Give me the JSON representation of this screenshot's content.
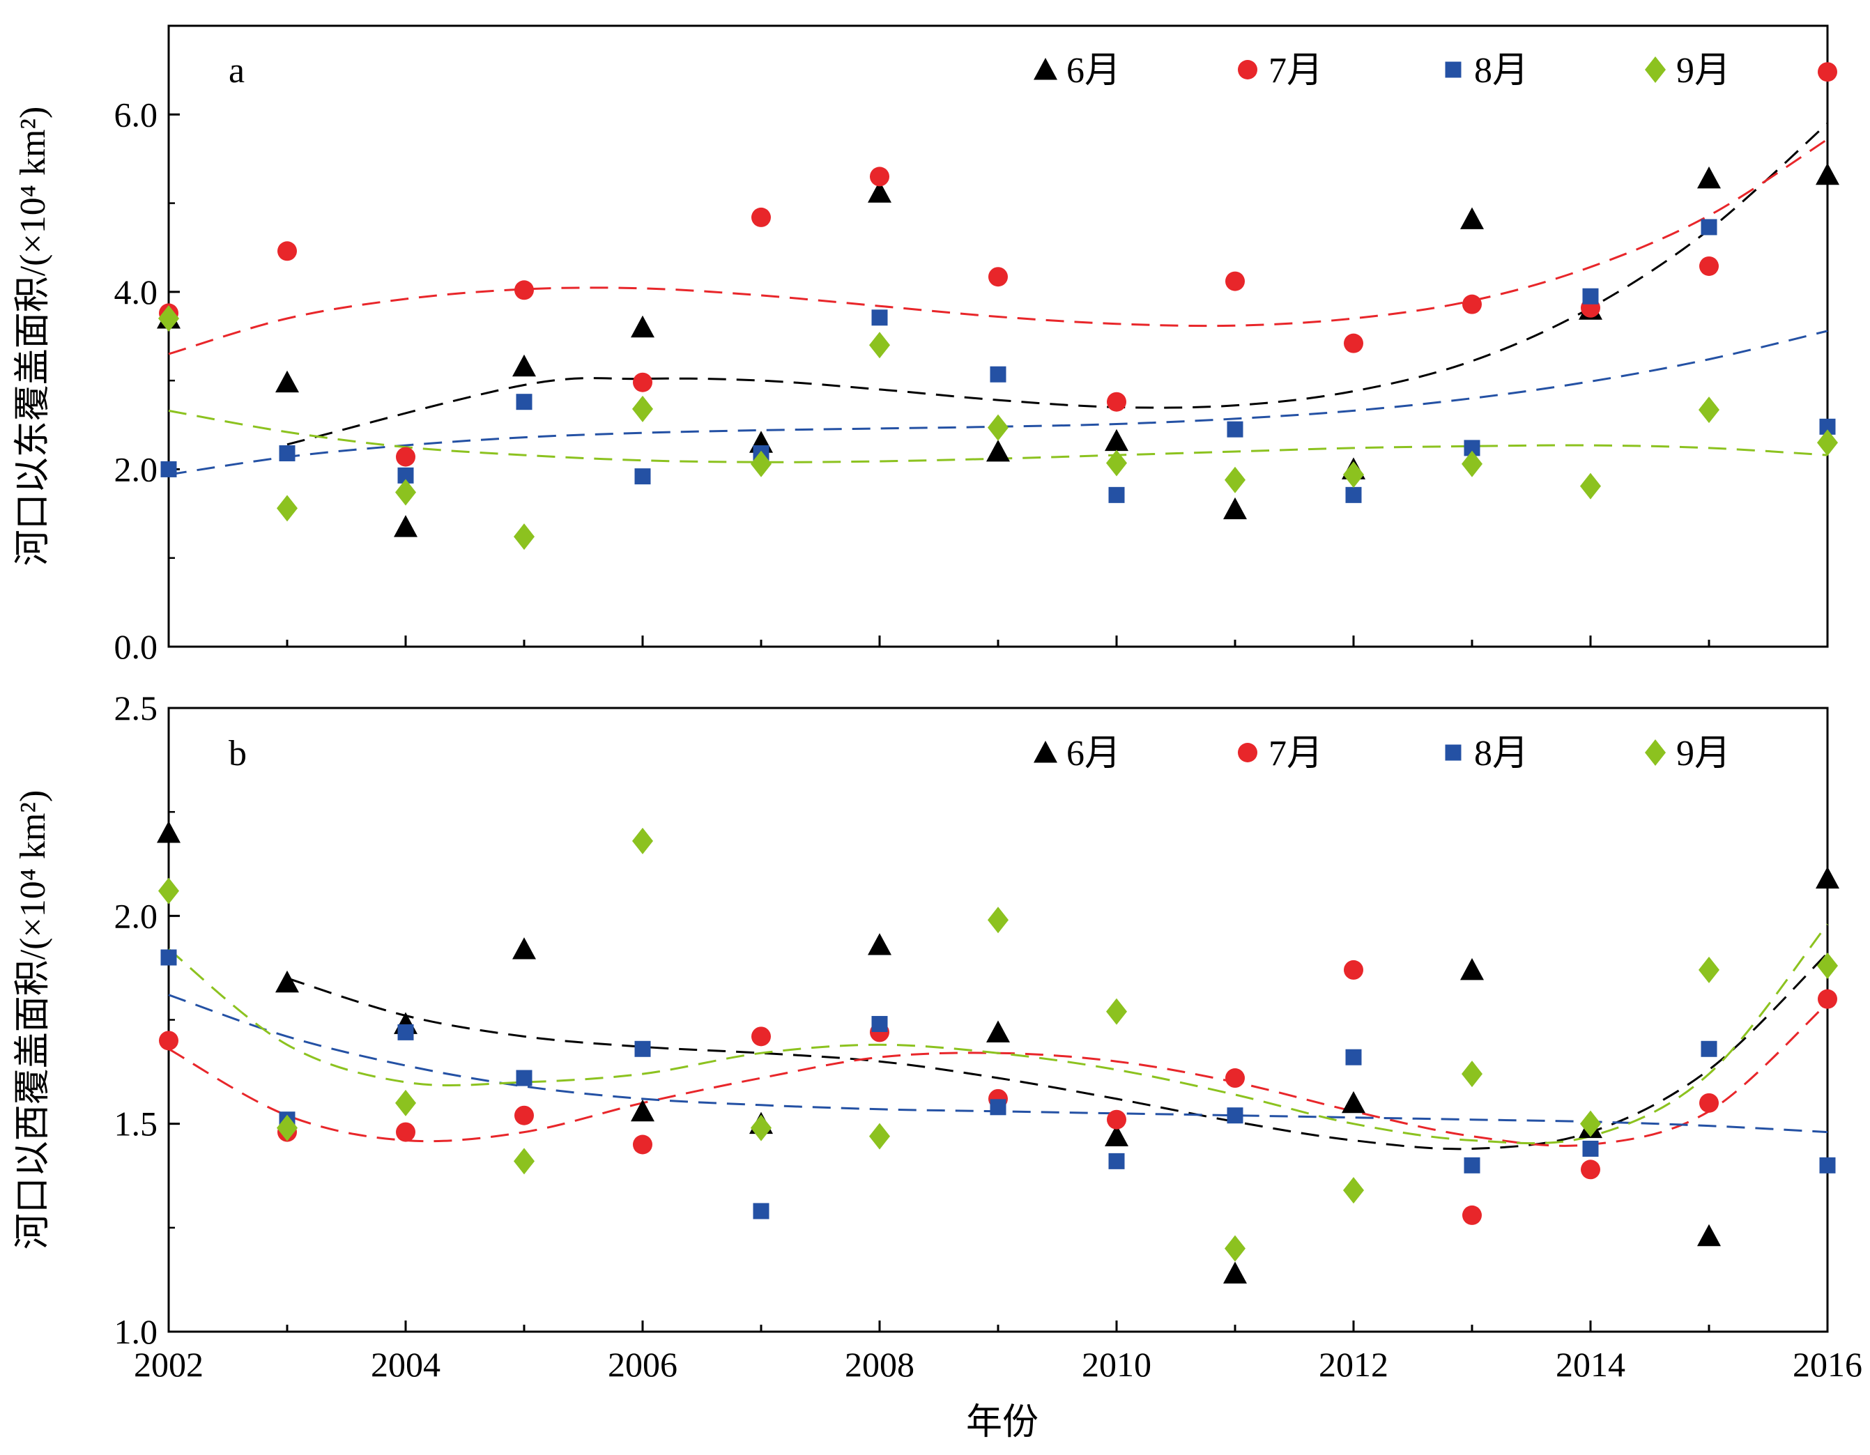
{
  "chart_data": [
    {
      "type": "scatter",
      "panel_label": "a",
      "ylabel": "河口以东覆盖面积/(×10⁴ km²)",
      "xlabel": "",
      "xlim": [
        2002,
        2016
      ],
      "ylim": [
        0,
        7
      ],
      "yticks": [
        "0.0",
        "2.0",
        "4.0",
        "6.0"
      ],
      "grid": false,
      "legend_position": "top-right",
      "x": [
        2002,
        2003,
        2004,
        2005,
        2006,
        2007,
        2008,
        2009,
        2010,
        2011,
        2012,
        2013,
        2014,
        2015,
        2016
      ],
      "series": [
        {
          "name": "6月",
          "marker": "triangle",
          "color": "#000000",
          "values": [
            3.7,
            2.98,
            1.35,
            3.16,
            3.6,
            2.3,
            5.12,
            2.2,
            2.32,
            1.55,
            2.0,
            4.82,
            3.8,
            5.28,
            5.32
          ],
          "trend": [
            [
              2003,
              2.28
            ],
            [
              2005,
              2.95
            ],
            [
              2006,
              3.02
            ],
            [
              2007,
              3.0
            ],
            [
              2008,
              2.9
            ],
            [
              2009,
              2.78
            ],
            [
              2010,
              2.7
            ],
            [
              2011,
              2.72
            ],
            [
              2012,
              2.88
            ],
            [
              2013,
              3.22
            ],
            [
              2014,
              3.82
            ],
            [
              2015,
              4.7
            ],
            [
              2016,
              5.9
            ]
          ]
        },
        {
          "name": "7月",
          "marker": "circle",
          "color": "#e8262a",
          "values": [
            3.76,
            4.46,
            2.14,
            4.02,
            2.98,
            4.84,
            5.3,
            4.17,
            2.76,
            4.12,
            3.42,
            3.86,
            3.82,
            4.29,
            6.48
          ],
          "trend": [
            [
              2002,
              3.3
            ],
            [
              2003,
              3.7
            ],
            [
              2004,
              3.92
            ],
            [
              2005,
              4.03
            ],
            [
              2006,
              4.04
            ],
            [
              2007,
              3.96
            ],
            [
              2008,
              3.84
            ],
            [
              2009,
              3.72
            ],
            [
              2010,
              3.64
            ],
            [
              2011,
              3.62
            ],
            [
              2012,
              3.7
            ],
            [
              2013,
              3.9
            ],
            [
              2014,
              4.28
            ],
            [
              2015,
              4.86
            ],
            [
              2016,
              5.72
            ]
          ]
        },
        {
          "name": "8月",
          "marker": "square",
          "color": "#2451a4",
          "values": [
            2.0,
            2.18,
            1.93,
            2.76,
            1.92,
            2.18,
            3.71,
            3.07,
            1.71,
            2.45,
            1.71,
            2.24,
            3.95,
            4.73,
            2.48
          ],
          "trend": [
            [
              2002,
              1.94
            ],
            [
              2003,
              2.14
            ],
            [
              2004,
              2.27
            ],
            [
              2005,
              2.36
            ],
            [
              2006,
              2.41
            ],
            [
              2007,
              2.44
            ],
            [
              2008,
              2.46
            ],
            [
              2009,
              2.48
            ],
            [
              2010,
              2.51
            ],
            [
              2011,
              2.57
            ],
            [
              2012,
              2.66
            ],
            [
              2013,
              2.8
            ],
            [
              2014,
              2.99
            ],
            [
              2015,
              3.24
            ],
            [
              2016,
              3.56
            ]
          ]
        },
        {
          "name": "9月",
          "marker": "diamond",
          "color": "#8cc21f",
          "values": [
            3.7,
            1.56,
            1.74,
            1.24,
            2.68,
            2.06,
            3.4,
            2.47,
            2.07,
            1.88,
            1.94,
            2.06,
            1.81,
            2.67,
            2.3
          ],
          "trend": [
            [
              2002,
              2.66
            ],
            [
              2003,
              2.42
            ],
            [
              2004,
              2.25
            ],
            [
              2005,
              2.16
            ],
            [
              2006,
              2.1
            ],
            [
              2007,
              2.08
            ],
            [
              2008,
              2.09
            ],
            [
              2009,
              2.12
            ],
            [
              2010,
              2.16
            ],
            [
              2011,
              2.2
            ],
            [
              2012,
              2.24
            ],
            [
              2013,
              2.26
            ],
            [
              2014,
              2.27
            ],
            [
              2015,
              2.24
            ],
            [
              2016,
              2.16
            ]
          ]
        }
      ]
    },
    {
      "type": "scatter",
      "panel_label": "b",
      "ylabel": "河口以西覆盖面积/(×10⁴ km²)",
      "xlabel": "年份",
      "xlim": [
        2002,
        2016
      ],
      "ylim": [
        1.0,
        2.5
      ],
      "yticks": [
        "1.0",
        "1.5",
        "2.0",
        "2.5"
      ],
      "xticks": [
        "2002",
        "2004",
        "2006",
        "2008",
        "2010",
        "2012",
        "2014",
        "2016"
      ],
      "grid": false,
      "legend_position": "top-right",
      "x": [
        2002,
        2003,
        2004,
        2005,
        2006,
        2007,
        2008,
        2009,
        2010,
        2011,
        2012,
        2013,
        2014,
        2015,
        2016
      ],
      "series": [
        {
          "name": "6月",
          "marker": "triangle",
          "color": "#000000",
          "values": [
            2.2,
            1.84,
            1.74,
            1.92,
            1.53,
            1.5,
            1.93,
            1.72,
            1.47,
            1.14,
            1.55,
            1.87,
            1.49,
            1.23,
            2.09
          ],
          "trend": [
            [
              2003,
              1.85
            ],
            [
              2004,
              1.76
            ],
            [
              2005,
              1.71
            ],
            [
              2006,
              1.685
            ],
            [
              2007,
              1.67
            ],
            [
              2008,
              1.65
            ],
            [
              2009,
              1.61
            ],
            [
              2010,
              1.56
            ],
            [
              2011,
              1.505
            ],
            [
              2012,
              1.46
            ],
            [
              2013,
              1.44
            ],
            [
              2014,
              1.48
            ],
            [
              2015,
              1.63
            ],
            [
              2016,
              1.91
            ]
          ]
        },
        {
          "name": "7月",
          "marker": "circle",
          "color": "#e8262a",
          "values": [
            1.7,
            1.48,
            1.48,
            1.52,
            1.45,
            1.71,
            1.72,
            1.56,
            1.51,
            1.61,
            1.87,
            1.28,
            1.39,
            1.55,
            1.8
          ],
          "trend": [
            [
              2002,
              1.68
            ],
            [
              2003,
              1.52
            ],
            [
              2004,
              1.46
            ],
            [
              2005,
              1.48
            ],
            [
              2006,
              1.55
            ],
            [
              2007,
              1.61
            ],
            [
              2008,
              1.66
            ],
            [
              2009,
              1.67
            ],
            [
              2010,
              1.65
            ],
            [
              2011,
              1.6
            ],
            [
              2012,
              1.53
            ],
            [
              2013,
              1.47
            ],
            [
              2014,
              1.45
            ],
            [
              2015,
              1.53
            ],
            [
              2016,
              1.79
            ]
          ]
        },
        {
          "name": "8月",
          "marker": "square",
          "color": "#2451a4",
          "values": [
            1.9,
            1.51,
            1.72,
            1.61,
            1.68,
            1.29,
            1.74,
            1.54,
            1.41,
            1.52,
            1.66,
            1.4,
            1.44,
            1.68,
            1.4
          ],
          "trend": [
            [
              2002,
              1.81
            ],
            [
              2003,
              1.71
            ],
            [
              2004,
              1.64
            ],
            [
              2005,
              1.59
            ],
            [
              2006,
              1.56
            ],
            [
              2007,
              1.545
            ],
            [
              2008,
              1.535
            ],
            [
              2009,
              1.53
            ],
            [
              2010,
              1.525
            ],
            [
              2011,
              1.52
            ],
            [
              2012,
              1.515
            ],
            [
              2013,
              1.51
            ],
            [
              2014,
              1.505
            ],
            [
              2015,
              1.495
            ],
            [
              2016,
              1.48
            ]
          ]
        },
        {
          "name": "9月",
          "marker": "diamond",
          "color": "#8cc21f",
          "values": [
            2.06,
            1.49,
            1.55,
            1.41,
            2.18,
            1.49,
            1.47,
            1.99,
            1.77,
            1.2,
            1.34,
            1.62,
            1.5,
            1.87,
            1.88
          ],
          "trend": [
            [
              2002,
              1.92
            ],
            [
              2003,
              1.69
            ],
            [
              2004,
              1.6
            ],
            [
              2005,
              1.6
            ],
            [
              2006,
              1.62
            ],
            [
              2007,
              1.67
            ],
            [
              2008,
              1.69
            ],
            [
              2009,
              1.67
            ],
            [
              2010,
              1.63
            ],
            [
              2011,
              1.57
            ],
            [
              2012,
              1.5
            ],
            [
              2013,
              1.46
            ],
            [
              2014,
              1.47
            ],
            [
              2015,
              1.62
            ],
            [
              2016,
              1.98
            ]
          ]
        }
      ]
    }
  ]
}
